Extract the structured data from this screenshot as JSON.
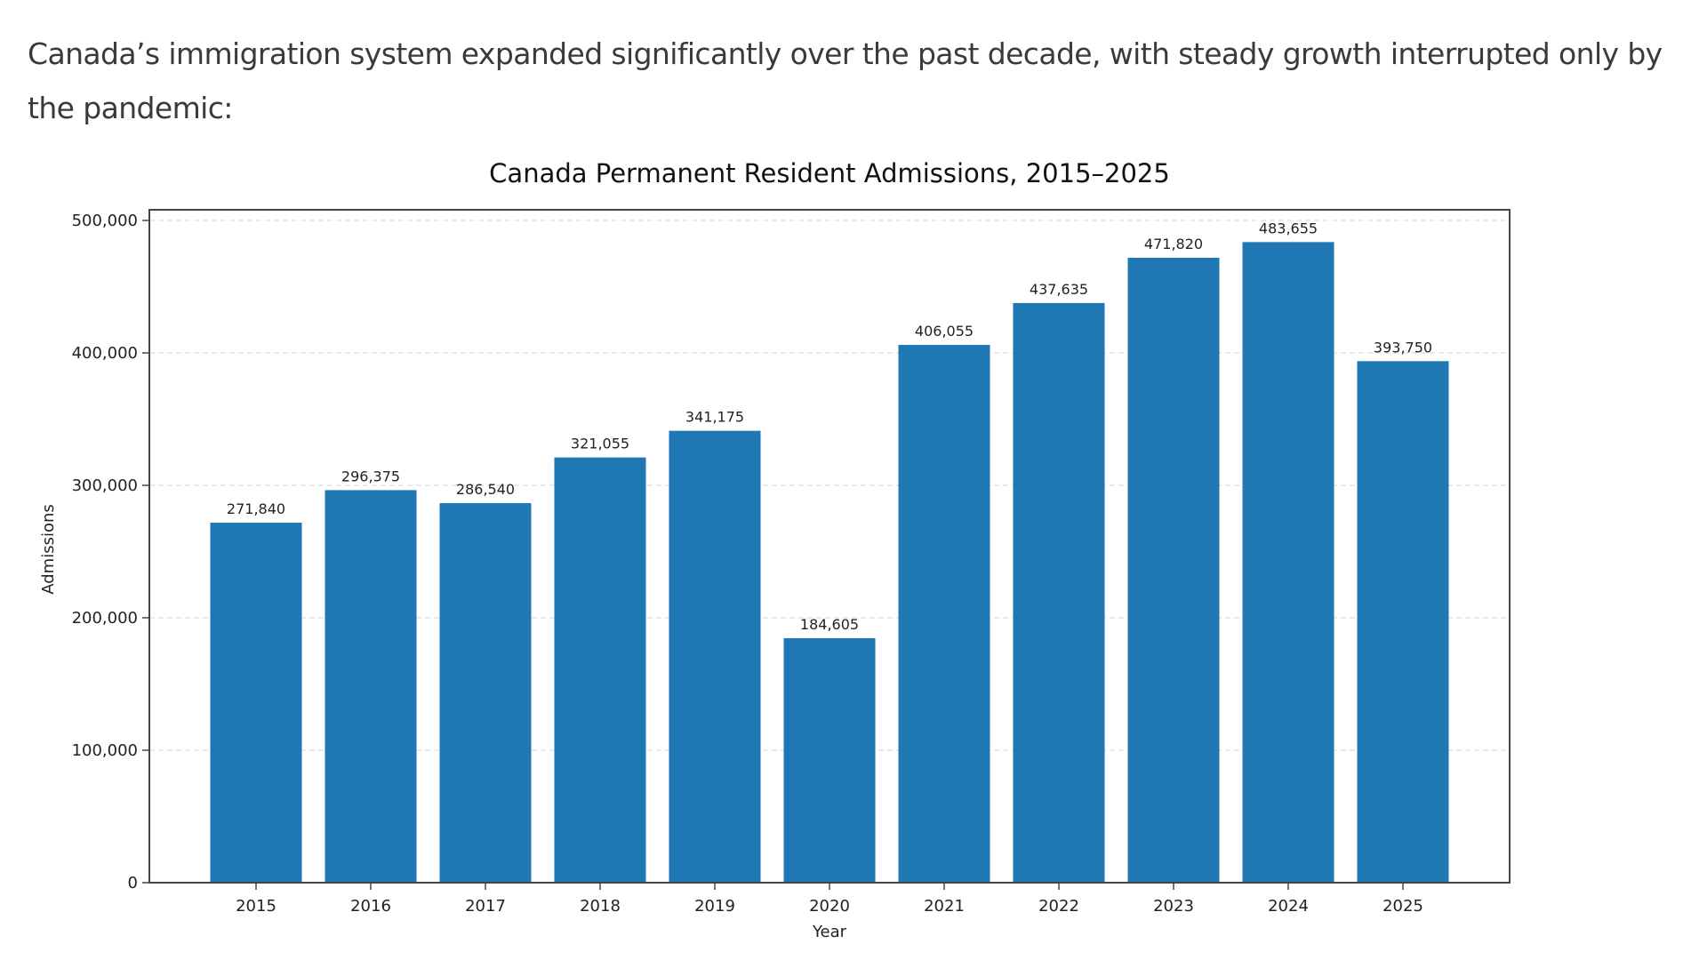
{
  "page": {
    "intro_text": "Canada’s immigration system expanded significantly over the past decade, with steady growth interrupted only by the pandemic:"
  },
  "colors": {
    "bar": "#1f77b4",
    "grid": "#dddddd",
    "axis": "#444444"
  },
  "chart_data": {
    "type": "bar",
    "title": "Canada Permanent Resident Admissions, 2015–2025",
    "xlabel": "Year",
    "ylabel": "Admissions",
    "categories": [
      "2015",
      "2016",
      "2017",
      "2018",
      "2019",
      "2020",
      "2021",
      "2022",
      "2023",
      "2024",
      "2025"
    ],
    "values": [
      271840,
      296375,
      286540,
      321055,
      341175,
      184605,
      406055,
      437635,
      471820,
      483655,
      393750
    ],
    "data_labels": [
      "271,840",
      "296,375",
      "286,540",
      "321,055",
      "341,175",
      "184,605",
      "406,055",
      "437,635",
      "471,820",
      "483,655",
      "393,750"
    ],
    "yticks": [
      0,
      100000,
      200000,
      300000,
      400000,
      500000
    ],
    "ytick_labels": [
      "0",
      "100,000",
      "200,000",
      "300,000",
      "400,000",
      "500,000"
    ],
    "ylim": [
      0,
      510000
    ],
    "grid": "y-dashed",
    "legend": "none"
  }
}
